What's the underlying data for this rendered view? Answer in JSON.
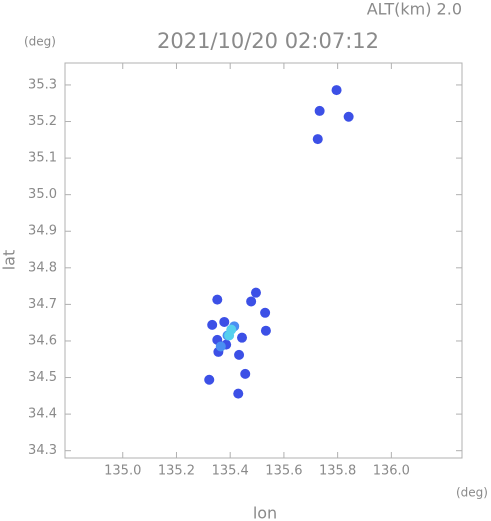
{
  "chart_data": {
    "type": "scatter",
    "title": "2021/10/20 02:07:12",
    "subtitle": "ALT(km) 2.0",
    "y_unit": "(deg)",
    "x_unit": "(deg)",
    "x_label": "lon",
    "y_label": "lat",
    "xlim": [
      134.785,
      136.263
    ],
    "ylim": [
      34.28,
      35.36
    ],
    "xticks": [
      {
        "value": 135.0,
        "label": "135.0"
      },
      135.2,
      135.4,
      135.6,
      135.8,
      {
        "value": 136.0,
        "label": "136.0"
      }
    ],
    "yticks": [
      34.3,
      34.4,
      34.5,
      34.6,
      34.7,
      34.8,
      34.9,
      {
        "value": 35.0,
        "label": "35.0"
      },
      35.1,
      35.2,
      35.3
    ],
    "series": [
      {
        "color": "#3c50e6",
        "x": [
          135.796,
          135.733,
          135.841,
          135.726,
          135.378,
          135.352,
          135.333,
          135.356,
          135.352,
          135.444,
          135.53,
          135.496,
          135.533,
          135.433,
          135.456,
          135.43,
          135.322,
          135.478,
          135.385
        ],
        "values": [
          35.286,
          35.229,
          35.213,
          35.152,
          34.652,
          34.713,
          34.644,
          34.57,
          34.603,
          34.609,
          34.677,
          34.732,
          34.628,
          34.562,
          34.51,
          34.456,
          34.494,
          34.708,
          34.59
        ]
      },
      {
        "color": "#4a8ff2",
        "x": [
          135.415,
          135.365,
          135.39
        ],
        "values": [
          34.64,
          34.585,
          34.615
        ]
      },
      {
        "color": "#55d0ee",
        "x": [
          135.404,
          135.396
        ],
        "values": [
          34.631,
          34.615
        ]
      }
    ]
  }
}
